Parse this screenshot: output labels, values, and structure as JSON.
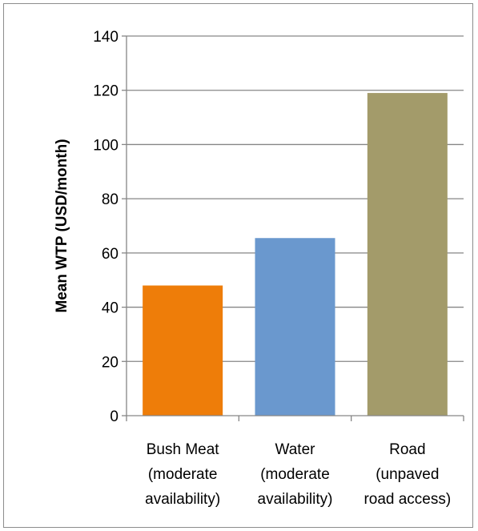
{
  "chart_data": {
    "type": "bar",
    "title": "",
    "xlabel": "",
    "ylabel": "Mean WTP (USD/month)",
    "ylim": [
      0,
      140
    ],
    "yticks": [
      0,
      20,
      40,
      60,
      80,
      100,
      120,
      140
    ],
    "grid": true,
    "legend": "none",
    "categories": [
      [
        "Bush Meat",
        "(moderate",
        "availability)"
      ],
      [
        "Water",
        "(moderate",
        "availability)"
      ],
      [
        "Road",
        "(unpaved",
        "road access)"
      ]
    ],
    "values": [
      48,
      65.5,
      119
    ],
    "colors": [
      "#ee7d09",
      "#6a98ce",
      "#a39b6a"
    ]
  },
  "colors": {
    "gridline": "#868686",
    "frame_border": "#8c8c8c"
  }
}
